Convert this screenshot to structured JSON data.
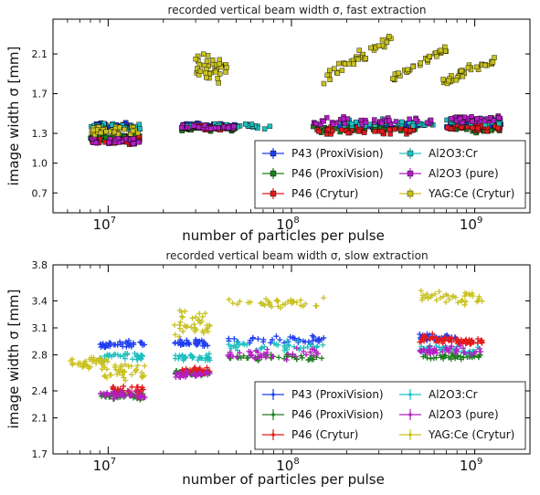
{
  "chart_data": [
    {
      "type": "scatter",
      "title": "recorded vertical beam width σ, fast extraction",
      "xlabel": "number of particles per pulse",
      "ylabel": "image width σ [mm]",
      "xscale": "log",
      "xlim": [
        5000000,
        2000000000
      ],
      "ylim": [
        0.5,
        2.45
      ],
      "yticks": [
        "0.7",
        "1.0",
        "1.3",
        "1.7",
        "2.1"
      ],
      "ytick_values": [
        0.7,
        1.0,
        1.3,
        1.7,
        2.1
      ],
      "xticks": [
        {
          "base": "10",
          "exp": "7",
          "value": 10000000
        },
        {
          "base": "10",
          "exp": "8",
          "value": 100000000
        },
        {
          "base": "10",
          "exp": "9",
          "value": 1000000000
        }
      ],
      "marker": "square",
      "grid": false,
      "legend_location": "lower right",
      "legend_columns": 2,
      "series": [
        {
          "name": "P43 (ProxiVision)",
          "color": "#1f3ef0",
          "clusters": [
            {
              "x": [
                8000000.0,
                15000000.0
              ],
              "y": 1.37,
              "spread": 0.03
            },
            {
              "x": [
                25000000.0,
                50000000.0
              ],
              "y": 1.38,
              "spread": 0.02
            },
            {
              "x": [
                180000000.0,
                500000000.0
              ],
              "y": 1.38,
              "spread": 0.02
            },
            {
              "x": [
                700000000.0,
                1400000000.0
              ],
              "y": 1.38,
              "spread": 0.02
            }
          ]
        },
        {
          "name": "P46 (ProxiVision)",
          "color": "#1e7d1e",
          "clusters": [
            {
              "x": [
                8000000.0,
                15000000.0
              ],
              "y": 1.27,
              "spread": 0.03
            },
            {
              "x": [
                25000000.0,
                50000000.0
              ],
              "y": 1.35,
              "spread": 0.02
            },
            {
              "x": [
                130000000.0,
                500000000.0
              ],
              "y": 1.34,
              "spread": 0.03
            },
            {
              "x": [
                700000000.0,
                1400000000.0
              ],
              "y": 1.35,
              "spread": 0.03
            }
          ]
        },
        {
          "name": "P46 (Crytur)",
          "color": "#e31a1c",
          "clusters": [
            {
              "x": [
                8000000.0,
                15000000.0
              ],
              "y": 1.23,
              "spread": 0.03
            },
            {
              "x": [
                25000000.0,
                50000000.0
              ],
              "y": 1.36,
              "spread": 0.02
            },
            {
              "x": [
                130000000.0,
                500000000.0
              ],
              "y": 1.33,
              "spread": 0.03
            },
            {
              "x": [
                700000000.0,
                1400000000.0
              ],
              "y": 1.36,
              "spread": 0.03
            }
          ]
        },
        {
          "name": "Al2O3:Cr",
          "color": "#1fbfbf",
          "clusters": [
            {
              "x": [
                8000000.0,
                15000000.0
              ],
              "y": 1.36,
              "spread": 0.03
            },
            {
              "x": [
                25000000.0,
                80000000.0
              ],
              "y": 1.37,
              "spread": 0.02
            },
            {
              "x": [
                180000000.0,
                600000000.0
              ],
              "y": 1.4,
              "spread": 0.03
            },
            {
              "x": [
                700000000.0,
                1400000000.0
              ],
              "y": 1.42,
              "spread": 0.03
            }
          ]
        },
        {
          "name": "Al2O3 (pure)",
          "color": "#b21fc2",
          "clusters": [
            {
              "x": [
                8000000.0,
                15000000.0
              ],
              "y": 1.22,
              "spread": 0.03
            },
            {
              "x": [
                25000000.0,
                50000000.0
              ],
              "y": 1.36,
              "spread": 0.02
            },
            {
              "x": [
                130000000.0,
                600000000.0
              ],
              "y": 1.42,
              "spread": 0.04
            },
            {
              "x": [
                700000000.0,
                1400000000.0
              ],
              "y": 1.44,
              "spread": 0.03
            }
          ]
        },
        {
          "name": "YAG:Ce (Crytur)",
          "color": "#c8c11f",
          "clusters": [
            {
              "x": [
                8000000.0,
                15000000.0
              ],
              "y": 1.33,
              "spread": 0.04
            },
            {
              "x": [
                30000000.0,
                45000000.0
              ],
              "y": 1.95,
              "spread": 0.12
            },
            {
              "x": [
                150000000.0,
                350000000.0
              ],
              "y": 2.0,
              "trend": [
                1.85,
                2.25
              ],
              "spread": 0.05
            },
            {
              "x": [
                350000000.0,
                700000000.0
              ],
              "y": 2.0,
              "trend": [
                1.85,
                2.15
              ],
              "spread": 0.04
            },
            {
              "x": [
                650000000.0,
                1300000000.0
              ],
              "y": 1.95,
              "trend": [
                1.8,
                2.05
              ],
              "spread": 0.04
            }
          ]
        }
      ]
    },
    {
      "type": "scatter",
      "title": "recorded vertical beam width σ, slow extraction",
      "xlabel": "number of particles per pulse",
      "ylabel": "image width σ [mm]",
      "xscale": "log",
      "xlim": [
        5000000,
        2000000000
      ],
      "ylim": [
        1.7,
        3.8
      ],
      "yticks": [
        "1.7",
        "2.1",
        "2.4",
        "2.8",
        "3.1",
        "3.4",
        "3.8"
      ],
      "ytick_values": [
        1.7,
        2.1,
        2.4,
        2.8,
        3.1,
        3.4,
        3.8
      ],
      "xticks": [
        {
          "base": "10",
          "exp": "7",
          "value": 10000000
        },
        {
          "base": "10",
          "exp": "8",
          "value": 100000000
        },
        {
          "base": "10",
          "exp": "9",
          "value": 1000000000
        }
      ],
      "marker": "plus",
      "grid": false,
      "legend_location": "lower right",
      "legend_columns": 2,
      "series": [
        {
          "name": "P43 (ProxiVision)",
          "color": "#1f3ef0",
          "clusters": [
            {
              "x": [
                9000000.0,
                16000000.0
              ],
              "y": 2.92,
              "spread": 0.03
            },
            {
              "x": [
                23000000.0,
                36000000.0
              ],
              "y": 2.93,
              "spread": 0.03
            },
            {
              "x": [
                45000000.0,
                150000000.0
              ],
              "y": 2.97,
              "spread": 0.04
            },
            {
              "x": [
                500000000.0,
                800000000.0
              ],
              "y": 3.0,
              "spread": 0.04
            }
          ]
        },
        {
          "name": "P46 (ProxiVision)",
          "color": "#1e7d1e",
          "clusters": [
            {
              "x": [
                9000000.0,
                16000000.0
              ],
              "y": 2.35,
              "spread": 0.04
            },
            {
              "x": [
                23000000.0,
                36000000.0
              ],
              "y": 2.6,
              "spread": 0.03
            },
            {
              "x": [
                45000000.0,
                150000000.0
              ],
              "y": 2.77,
              "spread": 0.03
            },
            {
              "x": [
                500000000.0,
                1100000000.0
              ],
              "y": 2.78,
              "spread": 0.03
            }
          ]
        },
        {
          "name": "P46 (Crytur)",
          "color": "#e31a1c",
          "clusters": [
            {
              "x": [
                10500000.0,
                16000000.0
              ],
              "y": 2.4,
              "spread": 0.06
            },
            {
              "x": [
                25000000.0,
                36000000.0
              ],
              "y": 2.62,
              "spread": 0.03
            },
            {
              "x": [
                500000000.0,
                800000000.0
              ],
              "y": 2.97,
              "spread": 0.05
            },
            {
              "x": [
                800000000.0,
                1100000000.0
              ],
              "y": 2.95,
              "spread": 0.03
            }
          ]
        },
        {
          "name": "Al2O3:Cr",
          "color": "#1fbfbf",
          "clusters": [
            {
              "x": [
                9000000.0,
                16000000.0
              ],
              "y": 2.78,
              "spread": 0.04
            },
            {
              "x": [
                23000000.0,
                36000000.0
              ],
              "y": 2.77,
              "spread": 0.03
            },
            {
              "x": [
                45000000.0,
                150000000.0
              ],
              "y": 2.9,
              "spread": 0.04
            },
            {
              "x": [
                500000000.0,
                1100000000.0
              ],
              "y": 2.85,
              "spread": 0.04
            }
          ]
        },
        {
          "name": "Al2O3 (pure)",
          "color": "#b21fc2",
          "clusters": [
            {
              "x": [
                9000000.0,
                16000000.0
              ],
              "y": 2.36,
              "spread": 0.04
            },
            {
              "x": [
                23000000.0,
                36000000.0
              ],
              "y": 2.58,
              "spread": 0.03
            },
            {
              "x": [
                45000000.0,
                150000000.0
              ],
              "y": 2.82,
              "spread": 0.05
            },
            {
              "x": [
                500000000.0,
                1100000000.0
              ],
              "y": 2.85,
              "spread": 0.04
            }
          ]
        },
        {
          "name": "YAG:Ce (Crytur)",
          "color": "#c8c11f",
          "clusters": [
            {
              "x": [
                6000000.0,
                10000000.0
              ],
              "y": 2.72,
              "spread": 0.06
            },
            {
              "x": [
                9000000.0,
                16000000.0
              ],
              "y": 2.62,
              "spread": 0.08
            },
            {
              "x": [
                23000000.0,
                36000000.0
              ],
              "y": 3.15,
              "spread": 0.12
            },
            {
              "x": [
                45000000.0,
                150000000.0
              ],
              "y": 3.37,
              "spread": 0.06
            },
            {
              "x": [
                500000000.0,
                1100000000.0
              ],
              "y": 3.43,
              "spread": 0.06
            }
          ]
        }
      ]
    }
  ]
}
